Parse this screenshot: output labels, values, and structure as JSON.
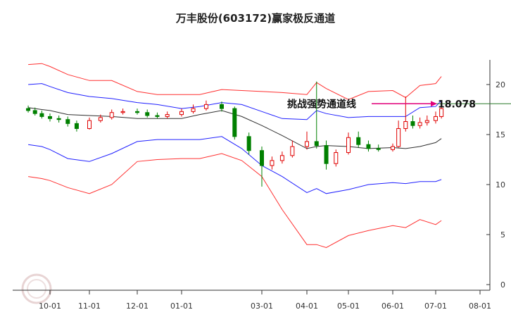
{
  "chart_data": {
    "type": "candlestick",
    "title": "万丰股份(603172)赢家极反通道",
    "x_ticks": [
      "10-01",
      "11-01",
      "12-01",
      "01-01",
      "03-01",
      "04-01",
      "05-01",
      "06-01",
      "07-01",
      "08-01"
    ],
    "y_ticks": [
      0,
      5,
      10,
      15,
      20
    ],
    "ylim": [
      0,
      22
    ],
    "grid": false,
    "annotation": {
      "label": "挑战强势通道线",
      "value": "18.078",
      "y": 18.078
    },
    "colors": {
      "up": "#e00000",
      "down": "#008000",
      "outer_band": "#ff3030",
      "inner_band": "#2020ff",
      "mid_line": "#303030",
      "arrow": "#e0007a",
      "ref_line": "#2a7a2a"
    },
    "bands": {
      "dates": [
        "09-15",
        "09-25",
        "10-01",
        "10-15",
        "11-01",
        "11-15",
        "12-01",
        "12-15",
        "01-01",
        "01-15",
        "02-01",
        "02-15",
        "03-01",
        "03-15",
        "04-01",
        "04-08",
        "04-15",
        "05-01",
        "05-15",
        "06-01",
        "06-10",
        "06-20",
        "07-01",
        "07-05"
      ],
      "outer_upper": [
        22.0,
        22.1,
        21.8,
        21.0,
        20.4,
        20.4,
        19.3,
        19.0,
        19.0,
        19.0,
        19.5,
        19.4,
        19.3,
        19.2,
        19.0,
        20.2,
        19.6,
        18.5,
        19.3,
        19.4,
        18.7,
        19.9,
        20.1,
        20.8
      ],
      "inner_upper": [
        20.0,
        20.1,
        19.8,
        19.2,
        18.8,
        18.6,
        18.2,
        18.0,
        17.6,
        17.8,
        18.2,
        18.0,
        17.3,
        16.6,
        16.5,
        17.4,
        17.1,
        16.7,
        16.8,
        16.8,
        16.8,
        17.7,
        17.8,
        18.4
      ],
      "mid": [
        17.7,
        17.5,
        17.4,
        17.0,
        16.9,
        16.8,
        16.6,
        16.6,
        16.6,
        17.0,
        17.4,
        16.8,
        15.9,
        14.9,
        13.6,
        13.8,
        13.9,
        13.8,
        13.6,
        13.7,
        13.6,
        13.8,
        14.2,
        14.6
      ],
      "inner_lower": [
        14.0,
        13.8,
        13.5,
        12.6,
        12.3,
        13.1,
        14.3,
        14.5,
        14.5,
        14.5,
        14.8,
        13.6,
        11.9,
        10.8,
        9.2,
        9.6,
        9.1,
        9.5,
        10.0,
        10.2,
        10.1,
        10.3,
        10.3,
        10.5
      ],
      "outer_lower": [
        10.8,
        10.6,
        10.4,
        9.7,
        9.1,
        10.0,
        12.3,
        12.5,
        12.6,
        12.6,
        13.1,
        12.4,
        10.8,
        7.5,
        4.0,
        4.0,
        3.7,
        4.9,
        5.4,
        5.9,
        5.7,
        6.5,
        6.0,
        6.4
      ]
    },
    "candles": {
      "dates": [
        "09-15",
        "09-20",
        "09-25",
        "10-01",
        "10-08",
        "10-15",
        "10-22",
        "11-01",
        "11-08",
        "11-15",
        "11-22",
        "12-01",
        "12-08",
        "12-15",
        "12-22",
        "01-01",
        "01-10",
        "01-20",
        "02-01",
        "02-10",
        "02-20",
        "03-01",
        "03-08",
        "03-15",
        "03-22",
        "04-01",
        "04-08",
        "04-15",
        "04-22",
        "05-01",
        "05-08",
        "05-15",
        "05-22",
        "06-01",
        "06-05",
        "06-10",
        "06-15",
        "06-20",
        "06-25",
        "07-01",
        "07-05"
      ],
      "open": [
        17.6,
        17.4,
        17.1,
        16.8,
        16.6,
        16.5,
        16.1,
        15.6,
        16.4,
        16.7,
        17.2,
        17.3,
        17.2,
        16.9,
        16.8,
        17.0,
        17.3,
        17.6,
        18.0,
        17.6,
        14.8,
        13.4,
        11.9,
        12.4,
        12.9,
        13.8,
        14.3,
        13.9,
        12.1,
        13.2,
        14.7,
        14.0,
        13.6,
        13.5,
        13.8,
        15.6,
        16.3,
        15.9,
        16.2,
        16.4,
        16.8
      ],
      "close": [
        17.4,
        17.1,
        16.8,
        16.6,
        16.5,
        16.1,
        15.6,
        16.4,
        16.7,
        17.2,
        17.3,
        17.2,
        16.9,
        16.8,
        17.0,
        17.3,
        17.6,
        18.0,
        17.6,
        14.8,
        13.4,
        11.9,
        12.4,
        12.9,
        13.8,
        14.3,
        13.9,
        12.1,
        13.2,
        14.7,
        14.0,
        13.6,
        13.5,
        13.8,
        15.6,
        16.3,
        15.9,
        16.2,
        16.4,
        16.8,
        17.6
      ],
      "high": [
        17.9,
        17.7,
        17.4,
        17.1,
        16.9,
        16.8,
        16.4,
        16.7,
        17.0,
        17.5,
        17.6,
        17.6,
        17.5,
        17.2,
        17.3,
        17.6,
        18.0,
        18.4,
        18.3,
        17.8,
        15.2,
        13.8,
        12.8,
        13.3,
        14.4,
        15.3,
        20.3,
        14.4,
        13.5,
        15.2,
        15.3,
        14.4,
        14.0,
        14.1,
        16.4,
        18.8,
        16.9,
        16.7,
        16.9,
        17.3,
        18.1
      ],
      "low": [
        17.2,
        16.9,
        16.6,
        16.3,
        16.2,
        15.8,
        15.3,
        15.5,
        16.2,
        16.5,
        17.0,
        17.0,
        16.7,
        16.6,
        16.6,
        16.8,
        17.1,
        17.4,
        17.3,
        14.5,
        13.0,
        9.8,
        11.5,
        12.1,
        12.7,
        13.5,
        13.6,
        11.5,
        11.8,
        13.0,
        13.7,
        13.3,
        13.3,
        13.3,
        13.7,
        15.3,
        15.6,
        15.6,
        15.9,
        16.1,
        16.6
      ]
    }
  }
}
